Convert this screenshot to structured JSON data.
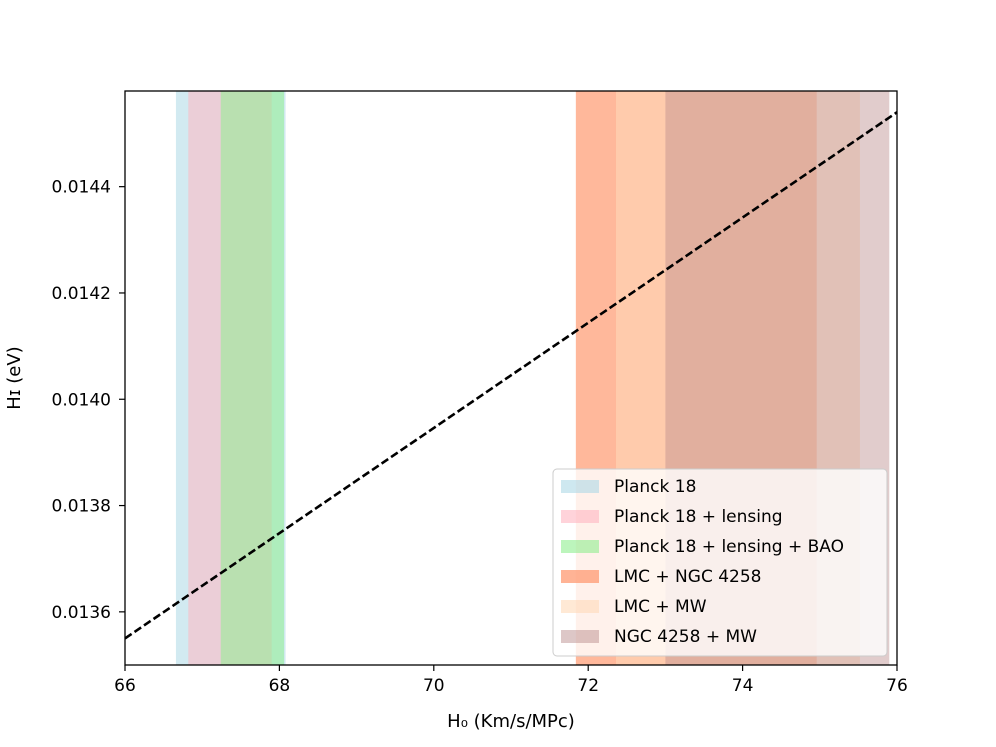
{
  "chart_data": {
    "type": "line",
    "title": "",
    "xlabel": "H₀ (Km/s/MPc)",
    "ylabel": "Hɪ (eV)",
    "xlim": [
      66,
      76
    ],
    "ylim": [
      0.0135,
      0.01458
    ],
    "x_ticks": [
      {
        "value": 66,
        "label": "66"
      },
      {
        "value": 68,
        "label": "68"
      },
      {
        "value": 70,
        "label": "70"
      },
      {
        "value": 72,
        "label": "72"
      },
      {
        "value": 74,
        "label": "74"
      },
      {
        "value": 76,
        "label": "76"
      }
    ],
    "y_ticks": [
      {
        "value": 0.0136,
        "label": "0.0136"
      },
      {
        "value": 0.0138,
        "label": "0.0138"
      },
      {
        "value": 0.014,
        "label": "0.0140"
      },
      {
        "value": 0.0142,
        "label": "0.0142"
      },
      {
        "value": 0.0144,
        "label": "0.0144"
      }
    ],
    "grid": false,
    "legend_position": "lower-right",
    "line": {
      "style": "dashed",
      "color": "#000000",
      "x": [
        66,
        76
      ],
      "y": [
        0.01355,
        0.01454
      ]
    },
    "bands": [
      {
        "name": "Planck 18",
        "x_min": 66.66,
        "x_max": 68.08,
        "color": "#add8e6",
        "alpha": 0.55
      },
      {
        "name": "Planck 18 + lensing",
        "x_min": 66.82,
        "x_max": 67.9,
        "color": "#ffb6c1",
        "alpha": 0.55
      },
      {
        "name": "Planck 18 + lensing + BAO",
        "x_min": 67.24,
        "x_max": 68.06,
        "color": "#90ee90",
        "alpha": 0.55
      },
      {
        "name": "LMC + NGC 4258",
        "x_min": 71.84,
        "x_max": 74.96,
        "color": "#ffa07a",
        "alpha": 0.75
      },
      {
        "name": "LMC + MW",
        "x_min": 72.36,
        "x_max": 75.52,
        "color": "#ffdab9",
        "alpha": 0.55
      },
      {
        "name": "NGC 4258 + MW",
        "x_min": 73.0,
        "x_max": 75.9,
        "color": "#bc8f8f",
        "alpha": 0.45
      }
    ]
  }
}
